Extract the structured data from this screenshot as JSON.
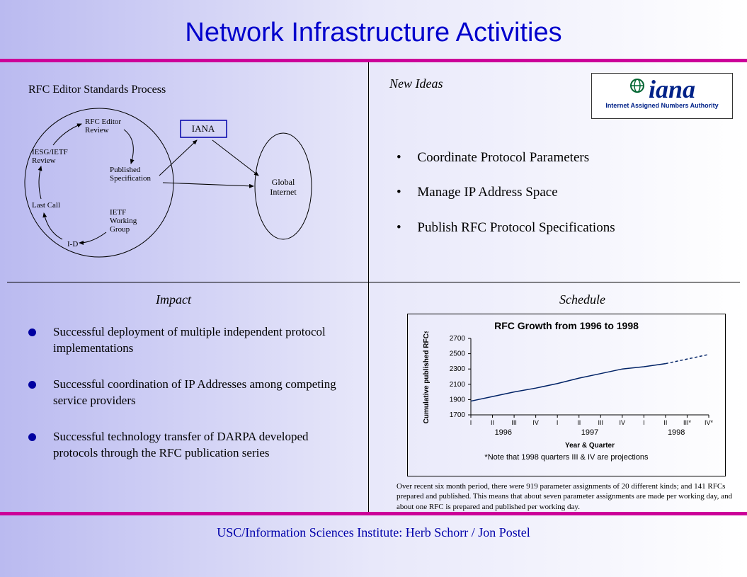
{
  "title": "Network Infrastructure Activities",
  "footer": "USC/Information Sciences Institute: Herb Schorr / Jon Postel",
  "colors": {
    "title_color": "#0000cc",
    "bar_color": "#cc0099",
    "bullet_dot": "#0000a0",
    "footer_color": "#0000aa",
    "bg_gradient_left": "#babaf0",
    "bg_gradient_right": "#ffffff"
  },
  "top_left": {
    "heading": "RFC Editor Standards Process",
    "diagram": {
      "type": "flowchart",
      "ellipse1_label_nodes": [
        {
          "id": "rfc_editor_review",
          "label": "RFC Editor Review"
        },
        {
          "id": "published_spec",
          "label": "Published Specification"
        },
        {
          "id": "ietf_wg",
          "label": "IETF Working Group"
        },
        {
          "id": "id",
          "label": "I-D"
        },
        {
          "id": "last_call",
          "label": "Last Call"
        },
        {
          "id": "iesg_ietf_review",
          "label": "IESG/IETF Review"
        }
      ],
      "center_box": {
        "label": "IANA"
      },
      "ellipse2_label": "Global Internet"
    }
  },
  "top_right": {
    "heading": "New Ideas",
    "logo": {
      "main": "iana",
      "sub": "Internet Assigned Numbers Authority"
    },
    "bullets": [
      "Coordinate Protocol Parameters",
      "Manage IP Address Space",
      "Publish RFC Protocol Specifications"
    ]
  },
  "bottom_left": {
    "heading": "Impact",
    "items": [
      "Successful deployment of multiple independent protocol implementations",
      "Successful coordination of IP Addresses among competing service providers",
      "Successful technology transfer of DARPA developed protocols through the RFC publication series"
    ]
  },
  "bottom_right": {
    "heading": "Schedule",
    "chart": {
      "type": "line",
      "title": "RFC Growth from 1996 to 1998",
      "ylabel": "Cumulative published RFCs",
      "xlabel": "Year & Quarter",
      "ylim": [
        1700,
        2700
      ],
      "yticks": [
        1700,
        1900,
        2100,
        2300,
        2500,
        2700
      ],
      "x_categories": [
        "I",
        "II",
        "III",
        "IV",
        "I",
        "II",
        "III",
        "IV",
        "I",
        "II",
        "III*",
        "IV*"
      ],
      "x_group_labels": [
        "1996",
        "1997",
        "1998"
      ],
      "values": [
        1880,
        1940,
        2000,
        2050,
        2110,
        2180,
        2240,
        2300,
        2330,
        2370,
        2430,
        2490
      ],
      "projected_from_index": 10,
      "line_color": "#002266",
      "note": "*Note that 1998 quarters III & IV are projections"
    },
    "summary": "Over recent six month period, there were 919 parameter assignments of 20 different kinds; and 141 RFCs prepared and published.  This means that about seven parameter assignments are made per working day, and about one RFC is prepared and published per working day."
  }
}
